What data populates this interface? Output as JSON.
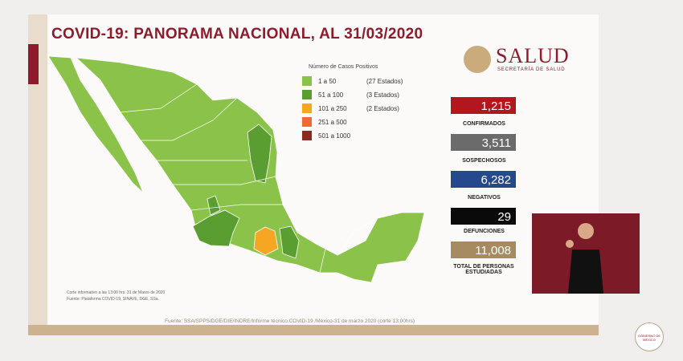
{
  "header": {
    "title": "COVID-19: PANORAMA NACIONAL, AL 31/03/2020"
  },
  "logo": {
    "name": "SALUD",
    "subtitle": "SECRETARÍA DE SALUD"
  },
  "legend": {
    "title": "Número de Casos Positivos",
    "items": [
      {
        "range": "1 a 50",
        "count": "(27 Estados)"
      },
      {
        "range": "51 a 100",
        "count": "(3 Estados)"
      },
      {
        "range": "101 a 250",
        "count": "(2 Estados)"
      },
      {
        "range": "251 a 500"
      },
      {
        "range": "501 a 1000"
      }
    ]
  },
  "stats": [
    {
      "value": "1,215",
      "label": "CONFIRMADOS"
    },
    {
      "value": "3,511",
      "label": "SOSPECHOSOS"
    },
    {
      "value": "6,282",
      "label": "NEGATIVOS"
    },
    {
      "value": "29",
      "label": "DEFUNCIONES"
    },
    {
      "value": "11,008",
      "label": "TOTAL DE PERSONAS ESTUDIADAS"
    }
  ],
  "notes": [
    "Corte informativo a las 13:00 hrs. 31 de Marzo de 2020",
    "Fuente: Plataforma COVID-19, SINAVE, DGE, SSa."
  ],
  "source": "Fuente: SSA/SPPS/DGE/DIE/INDRE/Informe técnico.COVID-19 /México-31 de marzo 2020 (corte 13:00hrs)",
  "footer_logo": "GOBIERNO DE MÉXICO"
}
